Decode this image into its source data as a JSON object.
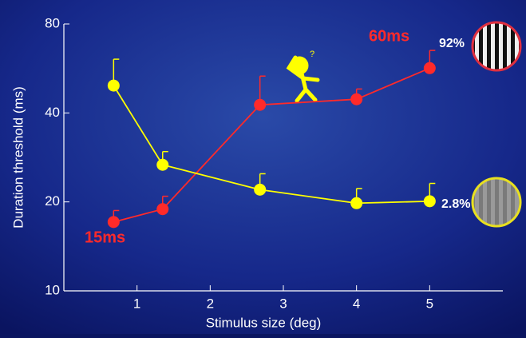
{
  "chart_data": {
    "type": "line",
    "x_label": "Stimulus size (deg)",
    "y_label": "Duration threshold (ms)",
    "yscale": "log",
    "xlim": [
      0,
      6
    ],
    "xticks": [
      1,
      2,
      3,
      4,
      5
    ],
    "ylim": [
      10,
      80
    ],
    "yticks": [
      10,
      20,
      40,
      80
    ],
    "series": [
      {
        "color": "#ff2a2a",
        "x": [
          0.68,
          1.35,
          2.68,
          4.0,
          5.0
        ],
        "values": [
          17.1,
          18.9,
          42.6,
          44.5,
          56.7
        ],
        "errors": [
          1.6,
          2.0,
          10.7,
          3.7,
          8.4
        ]
      },
      {
        "color": "#ffff00",
        "x": [
          0.68,
          1.35,
          2.68,
          4.0,
          5.0
        ],
        "values": [
          49.5,
          26.7,
          22.0,
          19.8,
          20.1
        ],
        "errors": [
          11.3,
          2.9,
          2.9,
          2.4,
          3.0
        ]
      }
    ],
    "annotations": [
      "15ms",
      "60ms",
      "92%",
      "2.8%"
    ]
  }
}
